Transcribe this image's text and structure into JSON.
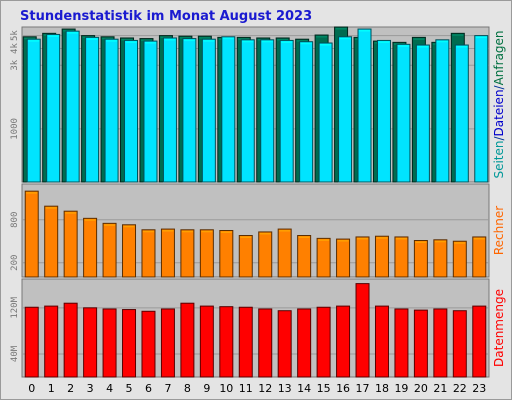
{
  "title": "Stundenstatistik im Monat August 2023",
  "chart_data": [
    {
      "type": "bar",
      "categories": [
        "0",
        "1",
        "2",
        "3",
        "4",
        "5",
        "6",
        "7",
        "8",
        "9",
        "10",
        "11",
        "12",
        "13",
        "14",
        "15",
        "16",
        "17",
        "18",
        "19",
        "20",
        "21",
        "22",
        "23"
      ],
      "ylabel_parts": [
        {
          "text": "Seiten",
          "color": "#009898"
        },
        {
          "text": "/",
          "color": "#003399"
        },
        {
          "text": "Dateien",
          "color": "#0000cc"
        },
        {
          "text": "/",
          "color": "#003399"
        },
        {
          "text": "Anfragen",
          "color": "#007040"
        }
      ],
      "yticks": [
        1000,
        3000,
        4000,
        5000
      ],
      "ytick_labels": [
        "1000",
        "3k",
        "4k",
        "5k"
      ],
      "ylim": [
        0,
        5800
      ],
      "scale": "log",
      "series": [
        {
          "name": "Anfragen",
          "color": "#006c50",
          "values": [
            4900,
            5200,
            5600,
            5000,
            4900,
            4800,
            4750,
            5000,
            4950,
            4950,
            4850,
            4850,
            4800,
            4800,
            4700,
            5050,
            5800,
            4850,
            4550,
            4450,
            4850,
            4450,
            5200,
            null
          ]
        },
        {
          "name": "Dateien",
          "color": "#00e4ff",
          "values": [
            4700,
            5100,
            5400,
            4850,
            4700,
            4600,
            4550,
            4800,
            4750,
            4700,
            4900,
            4650,
            4650,
            4600,
            4500,
            4400,
            4900,
            5600,
            4600,
            4300,
            4250,
            4650,
            4250,
            5000
          ]
        }
      ]
    },
    {
      "type": "bar",
      "categories": [
        "0",
        "1",
        "2",
        "3",
        "4",
        "5",
        "6",
        "7",
        "8",
        "9",
        "10",
        "11",
        "12",
        "13",
        "14",
        "15",
        "16",
        "17",
        "18",
        "19",
        "20",
        "21",
        "22",
        "23"
      ],
      "ylabel": "Rechner",
      "ylabel_color": "#ff6600",
      "yticks": [
        200,
        800
      ],
      "ylim": [
        0,
        1300
      ],
      "series": [
        {
          "name": "Rechner",
          "color": "#ff8000",
          "values": [
            1200,
            990,
            920,
            820,
            750,
            730,
            660,
            670,
            660,
            660,
            650,
            580,
            630,
            670,
            580,
            540,
            530,
            560,
            570,
            560,
            510,
            520,
            500,
            560
          ]
        }
      ]
    },
    {
      "type": "bar",
      "categories": [
        "0",
        "1",
        "2",
        "3",
        "4",
        "5",
        "6",
        "7",
        "8",
        "9",
        "10",
        "11",
        "12",
        "13",
        "14",
        "15",
        "16",
        "17",
        "18",
        "19",
        "20",
        "21",
        "22",
        "23"
      ],
      "ylabel": "Datenmenge",
      "ylabel_color": "#ff0000",
      "yticks": [
        40,
        120
      ],
      "ytick_labels": [
        "40M",
        "120M"
      ],
      "ylim": [
        0,
        170
      ],
      "series": [
        {
          "name": "Datenmenge",
          "color": "#ff0000",
          "values": [
            121,
            123,
            128,
            120,
            118,
            117,
            114,
            118,
            128,
            123,
            122,
            121,
            118,
            115,
            118,
            121,
            123,
            162,
            123,
            118,
            116,
            118,
            115,
            123
          ]
        }
      ]
    }
  ]
}
